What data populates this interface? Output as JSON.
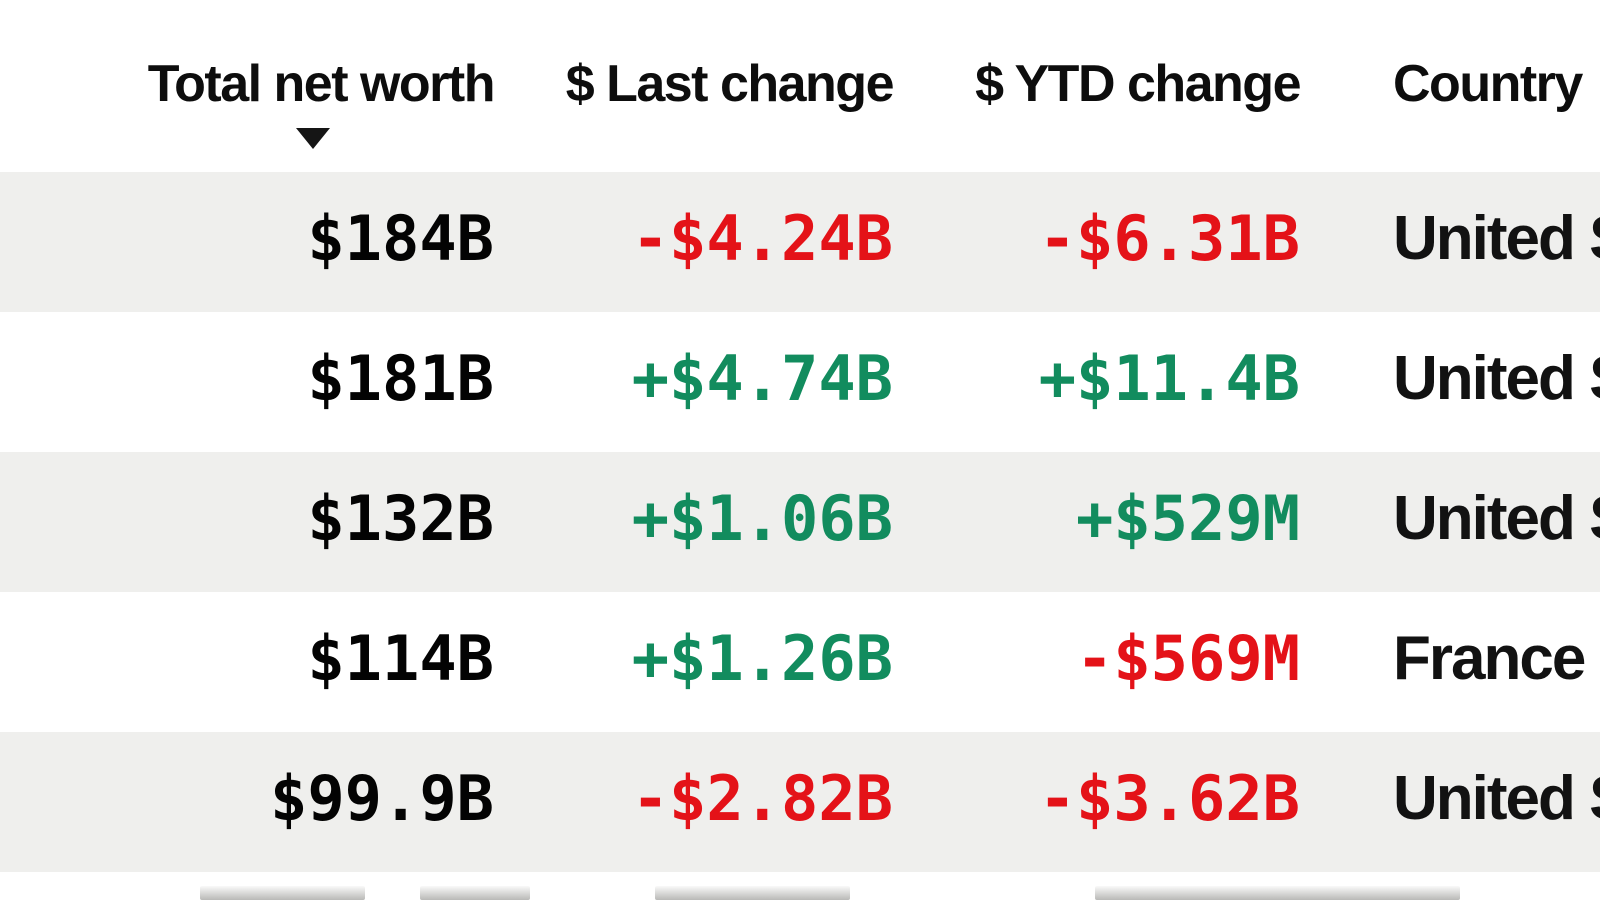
{
  "table": {
    "columns": [
      {
        "label": "Total net worth",
        "sorted": "desc"
      },
      {
        "label": "$ Last change"
      },
      {
        "label": "$ YTD change"
      },
      {
        "label": "Country"
      }
    ],
    "sort_indicator_icon": "triangle-down",
    "rows": [
      {
        "net_worth": "$184B",
        "last_change": "-$4.24B",
        "ytd_change": "-$6.31B",
        "country": "United S"
      },
      {
        "net_worth": "$181B",
        "last_change": "+$4.74B",
        "ytd_change": "+$11.4B",
        "country": "United S"
      },
      {
        "net_worth": "$132B",
        "last_change": "+$1.06B",
        "ytd_change": "+$529M",
        "country": "United S"
      },
      {
        "net_worth": "$114B",
        "last_change": "+$1.26B",
        "ytd_change": "-$569M",
        "country": "France"
      },
      {
        "net_worth": "$99.9B",
        "last_change": "-$2.82B",
        "ytd_change": "-$3.62B",
        "country": "United S"
      }
    ],
    "partial_row_visible": true
  },
  "colors": {
    "positive": "#128c5e",
    "negative": "#e41218",
    "stripe": "#efefed"
  }
}
